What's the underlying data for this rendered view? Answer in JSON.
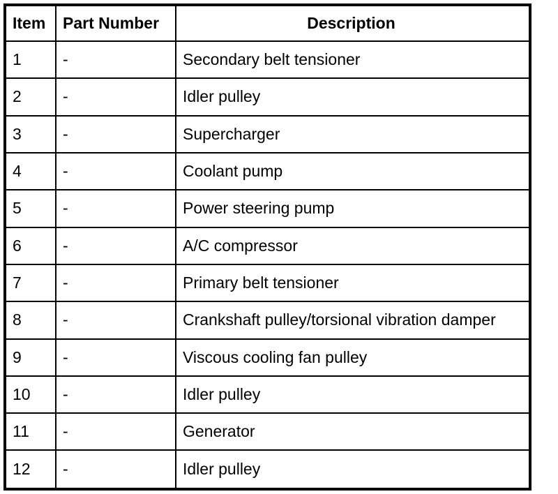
{
  "page": {
    "background_color": "#ffffff",
    "line_color": "#000000",
    "text_color": "#000000"
  },
  "table": {
    "headers": [
      "Item",
      "Part Number",
      "Description"
    ],
    "rows": [
      {
        "item": "1",
        "part_number": "-",
        "description": "Secondary belt tensioner"
      },
      {
        "item": "2",
        "part_number": "-",
        "description": "Idler pulley"
      },
      {
        "item": "3",
        "part_number": "-",
        "description": "Supercharger"
      },
      {
        "item": "4",
        "part_number": "-",
        "description": "Coolant pump"
      },
      {
        "item": "5",
        "part_number": "-",
        "description": "Power steering pump"
      },
      {
        "item": "6",
        "part_number": "-",
        "description": "A/C compressor"
      },
      {
        "item": "7",
        "part_number": "-",
        "description": "Primary belt tensioner"
      },
      {
        "item": "8",
        "part_number": "-",
        "description": "Crankshaft pulley/torsional vibration damper"
      },
      {
        "item": "9",
        "part_number": "-",
        "description": "Viscous cooling fan pulley"
      },
      {
        "item": "10",
        "part_number": "-",
        "description": "Idler pulley"
      },
      {
        "item": "11",
        "part_number": "-",
        "description": "Generator"
      },
      {
        "item": "12",
        "part_number": "-",
        "description": "Idler pulley"
      }
    ]
  }
}
